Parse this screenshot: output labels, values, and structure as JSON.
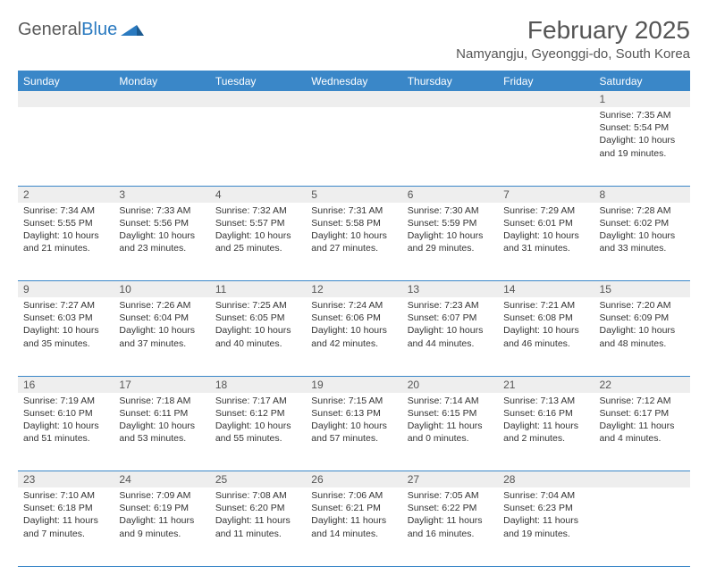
{
  "logo": {
    "text1": "General",
    "text2": "Blue"
  },
  "title": "February 2025",
  "subtitle": "Namyangju, Gyeonggi-do, South Korea",
  "colors": {
    "header_bg": "#3a87c8",
    "header_text": "#ffffff",
    "daynum_bg": "#eeeeee",
    "body_text": "#333333",
    "rule": "#3a87c8",
    "title_text": "#555555"
  },
  "weekdays": [
    "Sunday",
    "Monday",
    "Tuesday",
    "Wednesday",
    "Thursday",
    "Friday",
    "Saturday"
  ],
  "grid": [
    [
      {
        "n": "",
        "lines": []
      },
      {
        "n": "",
        "lines": []
      },
      {
        "n": "",
        "lines": []
      },
      {
        "n": "",
        "lines": []
      },
      {
        "n": "",
        "lines": []
      },
      {
        "n": "",
        "lines": []
      },
      {
        "n": "1",
        "lines": [
          "Sunrise: 7:35 AM",
          "Sunset: 5:54 PM",
          "Daylight: 10 hours and 19 minutes."
        ]
      }
    ],
    [
      {
        "n": "2",
        "lines": [
          "Sunrise: 7:34 AM",
          "Sunset: 5:55 PM",
          "Daylight: 10 hours and 21 minutes."
        ]
      },
      {
        "n": "3",
        "lines": [
          "Sunrise: 7:33 AM",
          "Sunset: 5:56 PM",
          "Daylight: 10 hours and 23 minutes."
        ]
      },
      {
        "n": "4",
        "lines": [
          "Sunrise: 7:32 AM",
          "Sunset: 5:57 PM",
          "Daylight: 10 hours and 25 minutes."
        ]
      },
      {
        "n": "5",
        "lines": [
          "Sunrise: 7:31 AM",
          "Sunset: 5:58 PM",
          "Daylight: 10 hours and 27 minutes."
        ]
      },
      {
        "n": "6",
        "lines": [
          "Sunrise: 7:30 AM",
          "Sunset: 5:59 PM",
          "Daylight: 10 hours and 29 minutes."
        ]
      },
      {
        "n": "7",
        "lines": [
          "Sunrise: 7:29 AM",
          "Sunset: 6:01 PM",
          "Daylight: 10 hours and 31 minutes."
        ]
      },
      {
        "n": "8",
        "lines": [
          "Sunrise: 7:28 AM",
          "Sunset: 6:02 PM",
          "Daylight: 10 hours and 33 minutes."
        ]
      }
    ],
    [
      {
        "n": "9",
        "lines": [
          "Sunrise: 7:27 AM",
          "Sunset: 6:03 PM",
          "Daylight: 10 hours and 35 minutes."
        ]
      },
      {
        "n": "10",
        "lines": [
          "Sunrise: 7:26 AM",
          "Sunset: 6:04 PM",
          "Daylight: 10 hours and 37 minutes."
        ]
      },
      {
        "n": "11",
        "lines": [
          "Sunrise: 7:25 AM",
          "Sunset: 6:05 PM",
          "Daylight: 10 hours and 40 minutes."
        ]
      },
      {
        "n": "12",
        "lines": [
          "Sunrise: 7:24 AM",
          "Sunset: 6:06 PM",
          "Daylight: 10 hours and 42 minutes."
        ]
      },
      {
        "n": "13",
        "lines": [
          "Sunrise: 7:23 AM",
          "Sunset: 6:07 PM",
          "Daylight: 10 hours and 44 minutes."
        ]
      },
      {
        "n": "14",
        "lines": [
          "Sunrise: 7:21 AM",
          "Sunset: 6:08 PM",
          "Daylight: 10 hours and 46 minutes."
        ]
      },
      {
        "n": "15",
        "lines": [
          "Sunrise: 7:20 AM",
          "Sunset: 6:09 PM",
          "Daylight: 10 hours and 48 minutes."
        ]
      }
    ],
    [
      {
        "n": "16",
        "lines": [
          "Sunrise: 7:19 AM",
          "Sunset: 6:10 PM",
          "Daylight: 10 hours and 51 minutes."
        ]
      },
      {
        "n": "17",
        "lines": [
          "Sunrise: 7:18 AM",
          "Sunset: 6:11 PM",
          "Daylight: 10 hours and 53 minutes."
        ]
      },
      {
        "n": "18",
        "lines": [
          "Sunrise: 7:17 AM",
          "Sunset: 6:12 PM",
          "Daylight: 10 hours and 55 minutes."
        ]
      },
      {
        "n": "19",
        "lines": [
          "Sunrise: 7:15 AM",
          "Sunset: 6:13 PM",
          "Daylight: 10 hours and 57 minutes."
        ]
      },
      {
        "n": "20",
        "lines": [
          "Sunrise: 7:14 AM",
          "Sunset: 6:15 PM",
          "Daylight: 11 hours and 0 minutes."
        ]
      },
      {
        "n": "21",
        "lines": [
          "Sunrise: 7:13 AM",
          "Sunset: 6:16 PM",
          "Daylight: 11 hours and 2 minutes."
        ]
      },
      {
        "n": "22",
        "lines": [
          "Sunrise: 7:12 AM",
          "Sunset: 6:17 PM",
          "Daylight: 11 hours and 4 minutes."
        ]
      }
    ],
    [
      {
        "n": "23",
        "lines": [
          "Sunrise: 7:10 AM",
          "Sunset: 6:18 PM",
          "Daylight: 11 hours and 7 minutes."
        ]
      },
      {
        "n": "24",
        "lines": [
          "Sunrise: 7:09 AM",
          "Sunset: 6:19 PM",
          "Daylight: 11 hours and 9 minutes."
        ]
      },
      {
        "n": "25",
        "lines": [
          "Sunrise: 7:08 AM",
          "Sunset: 6:20 PM",
          "Daylight: 11 hours and 11 minutes."
        ]
      },
      {
        "n": "26",
        "lines": [
          "Sunrise: 7:06 AM",
          "Sunset: 6:21 PM",
          "Daylight: 11 hours and 14 minutes."
        ]
      },
      {
        "n": "27",
        "lines": [
          "Sunrise: 7:05 AM",
          "Sunset: 6:22 PM",
          "Daylight: 11 hours and 16 minutes."
        ]
      },
      {
        "n": "28",
        "lines": [
          "Sunrise: 7:04 AM",
          "Sunset: 6:23 PM",
          "Daylight: 11 hours and 19 minutes."
        ]
      },
      {
        "n": "",
        "lines": []
      }
    ]
  ]
}
